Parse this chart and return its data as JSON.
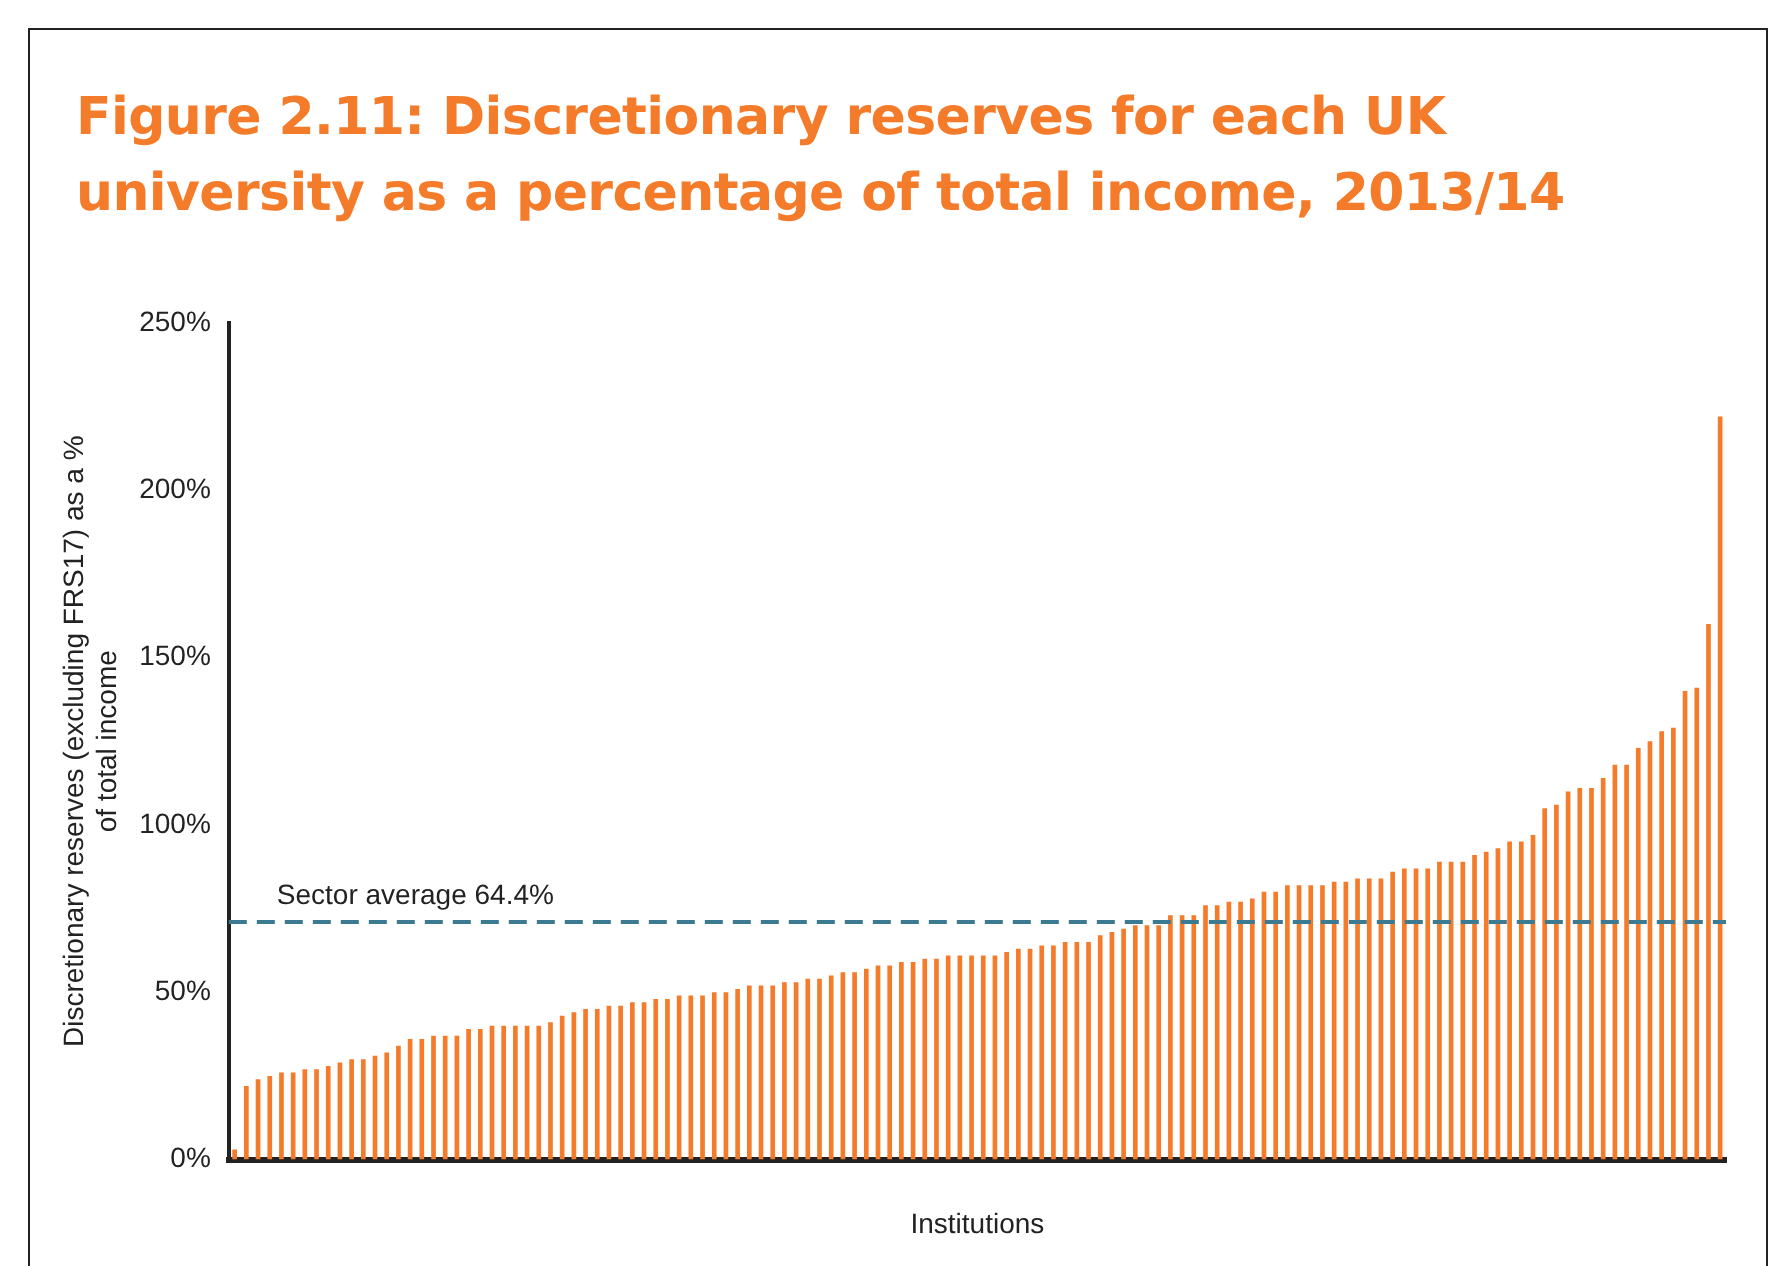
{
  "chart_data": {
    "type": "bar",
    "title": "Figure 2.11: Discretionary reserves for each UK university as a percentage of total income, 2013/14",
    "xlabel": "Institutions",
    "ylabel": "Discretionary reserves (excluding FRS17) as a %\nof total income",
    "categories": [
      null,
      null,
      null,
      null,
      null,
      null,
      null,
      null,
      null,
      null,
      null,
      null,
      null,
      null,
      null,
      null,
      null,
      null,
      null,
      null,
      null,
      null,
      null,
      null,
      null,
      null,
      null,
      null,
      null,
      null,
      null,
      null,
      null,
      null,
      null,
      null,
      null,
      null,
      null,
      null,
      null,
      null,
      null,
      null,
      null,
      null,
      null,
      null,
      null,
      null,
      null,
      null,
      null,
      null,
      null,
      null,
      null,
      null,
      null,
      null,
      null,
      null,
      null,
      null,
      null,
      null,
      null,
      null,
      null,
      null,
      null,
      null,
      null,
      null,
      null,
      null,
      null,
      null,
      null,
      null,
      null,
      null,
      null,
      null,
      null,
      null,
      null,
      null,
      null,
      null,
      null,
      null,
      null,
      null,
      null,
      null,
      null,
      null,
      null,
      null,
      null,
      null,
      null,
      null,
      null,
      null,
      null,
      null,
      null,
      null,
      null,
      null,
      null,
      null,
      null,
      null,
      null,
      null,
      null,
      null,
      null,
      null,
      null,
      null,
      null,
      null,
      null,
      null
    ],
    "values": [
      3,
      22,
      24,
      25,
      26,
      26,
      27,
      27,
      28,
      29,
      30,
      30,
      31,
      32,
      34,
      36,
      36,
      37,
      37,
      37,
      39,
      39,
      40,
      40,
      40,
      40,
      40,
      41,
      43,
      44,
      45,
      45,
      46,
      46,
      47,
      47,
      48,
      48,
      49,
      49,
      49,
      50,
      50,
      51,
      52,
      52,
      52,
      53,
      53,
      54,
      54,
      55,
      56,
      56,
      57,
      58,
      58,
      59,
      59,
      60,
      60,
      61,
      61,
      61,
      61,
      61,
      62,
      63,
      63,
      64,
      64,
      65,
      65,
      65,
      67,
      68,
      69,
      70,
      70,
      70,
      73,
      73,
      73,
      76,
      76,
      77,
      77,
      78,
      80,
      80,
      82,
      82,
      82,
      82,
      83,
      83,
      84,
      84,
      84,
      86,
      87,
      87,
      87,
      89,
      89,
      89,
      91,
      92,
      93,
      95,
      95,
      97,
      105,
      106,
      110,
      111,
      111,
      114,
      118,
      118,
      123,
      125,
      128,
      129,
      140,
      141,
      160,
      222
    ],
    "color": "#f47b2a",
    "ylim": [
      0,
      250
    ],
    "yticks": [
      {
        "value": 0,
        "label": "0%"
      },
      {
        "value": 50,
        "label": "50%"
      },
      {
        "value": 100,
        "label": "100%"
      },
      {
        "value": 150,
        "label": "150%"
      },
      {
        "value": 200,
        "label": "200%"
      },
      {
        "value": 250,
        "label": "250%"
      }
    ],
    "ref_lines": [
      {
        "axis": "y",
        "value": 71,
        "label": "Sector average 64.4%",
        "color": "#3b7a90",
        "line_style": "dashed"
      }
    ],
    "grid": false,
    "legend": false
  }
}
